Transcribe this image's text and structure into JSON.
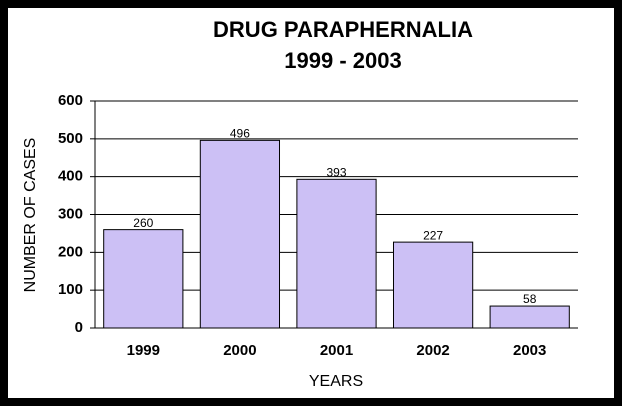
{
  "chart_data": {
    "type": "bar",
    "title": "DRUG PARAPHERNALIA",
    "subtitle": "1999 - 2003",
    "x_label": "YEARS",
    "y_label": "NUMBER OF CASES",
    "categories": [
      "1999",
      "2000",
      "2001",
      "2002",
      "2003"
    ],
    "values": [
      260,
      496,
      393,
      227,
      58
    ],
    "color": "#ccc0f5",
    "ylim": [
      0,
      600
    ],
    "yticks": [
      0,
      100,
      200,
      300,
      400,
      500,
      600
    ],
    "grid": true
  }
}
